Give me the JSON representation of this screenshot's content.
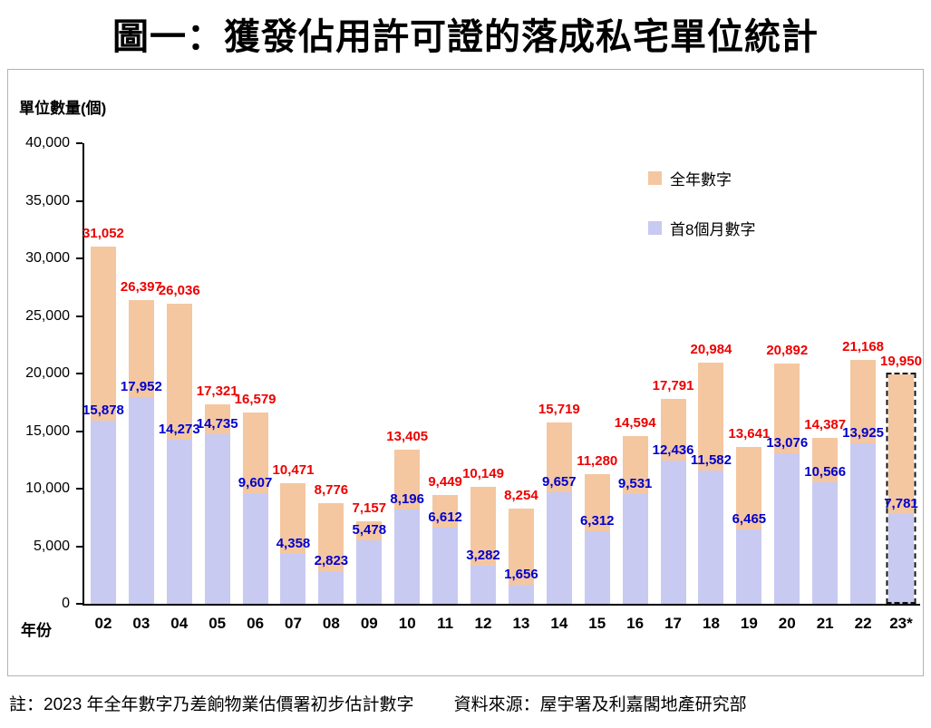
{
  "title": "圖一：獲發佔用許可證的落成私宅單位統計",
  "y_axis_title": "單位數量(個)",
  "x_axis_title": "年份",
  "note": "註：2023 年全年數字乃差餉物業估價署初步估計數字",
  "source": "資料來源：屋宇署及利嘉閣地產研究部",
  "colors": {
    "full_year_bar": "#f4c7a0",
    "first8_bar": "#c8caf2",
    "full_label": "#ed0000",
    "first8_label": "#0000cd",
    "axis": "#000000",
    "estimate_outline": "#111111"
  },
  "chart_data": {
    "type": "bar",
    "title": "圖一：獲發佔用許可證的落成私宅單位統計",
    "xlabel": "年份",
    "ylabel": "單位數量(個)",
    "categories": [
      "02",
      "03",
      "04",
      "05",
      "06",
      "07",
      "08",
      "09",
      "10",
      "11",
      "12",
      "13",
      "14",
      "15",
      "16",
      "17",
      "18",
      "19",
      "20",
      "21",
      "22",
      "23*"
    ],
    "series": [
      {
        "name": "全年數字",
        "values": [
          31052,
          26397,
          26036,
          17321,
          16579,
          10471,
          8776,
          7157,
          13405,
          9449,
          10149,
          8254,
          15719,
          11280,
          14594,
          17791,
          20984,
          13641,
          20892,
          14387,
          21168,
          19950
        ]
      },
      {
        "name": "首8個月數字",
        "values": [
          15878,
          17952,
          14273,
          14735,
          9607,
          4358,
          2823,
          5478,
          8196,
          6612,
          3282,
          1656,
          9657,
          6312,
          9531,
          12436,
          11582,
          6465,
          13076,
          10566,
          13925,
          7781
        ]
      }
    ],
    "estimated_category": "23*",
    "ylim": [
      0,
      40000
    ],
    "ytick_values": [
      0,
      5000,
      10000,
      15000,
      20000,
      25000,
      30000,
      35000,
      40000
    ],
    "yticks": [
      "0",
      "5,000",
      "10,000",
      "15,000",
      "20,000",
      "25,000",
      "30,000",
      "35,000",
      "40,000"
    ],
    "grid": false,
    "legend_position": "top-right-inside",
    "bar_style": "overlapped"
  }
}
